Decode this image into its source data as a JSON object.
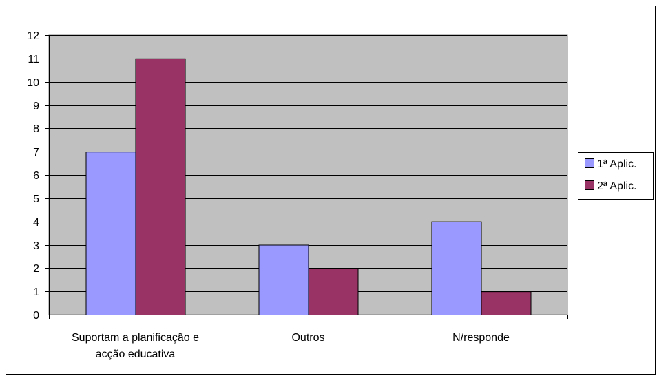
{
  "chart_data": {
    "type": "bar",
    "title": "",
    "xlabel": "",
    "ylabel": "",
    "categories": [
      [
        "Suportam a planificação e",
        "acção educativa"
      ],
      [
        "Outros"
      ],
      [
        "N/responde"
      ]
    ],
    "series": [
      {
        "name": "1ª Aplic.",
        "values": [
          7,
          3,
          4
        ],
        "color": "#9999ff"
      },
      {
        "name": "2ª Aplic.",
        "values": [
          11,
          2,
          1
        ],
        "color": "#993366"
      }
    ],
    "ylim": [
      0,
      12
    ],
    "yticks": [
      "0",
      "1",
      "2",
      "3",
      "4",
      "5",
      "6",
      "7",
      "8",
      "9",
      "10",
      "11",
      "12"
    ],
    "grid": true,
    "legend_position": "right",
    "plot_background": "#c0c0c0"
  }
}
